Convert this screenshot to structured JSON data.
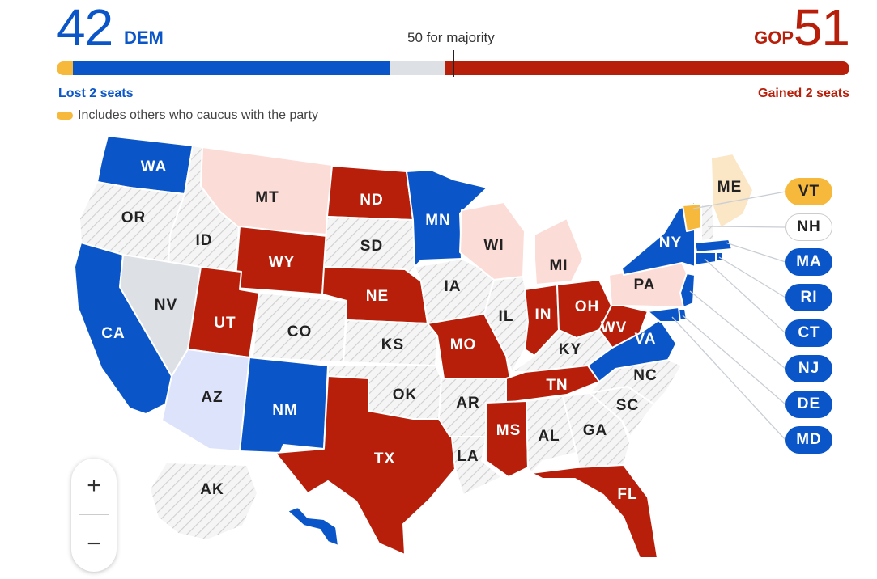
{
  "header": {
    "dem_count": "42",
    "dem_label": "DEM",
    "gop_count": "51",
    "gop_label": "GOP",
    "majority_label": "50 for majority",
    "dem_change": "Lost 2 seats",
    "gop_change": "Gained 2 seats",
    "note": "Includes others who caucus with the party"
  },
  "seat_bar": {
    "total_seats": 100,
    "majority": 50,
    "independent_dem": 2,
    "dem": 40,
    "undecided": 7,
    "gop": 51
  },
  "colors": {
    "dem_solid": "#0a56c9",
    "gop_solid": "#b81f0a",
    "gop_light": "#fcdcd7",
    "dem_light": "#dde3fb",
    "independent": "#f6b93b",
    "independent_light": "#fbe6c6",
    "no_race": "#f4f4f4",
    "undecided": "#dde1e6"
  },
  "states": [
    {
      "abbr": "WA",
      "status": "dem"
    },
    {
      "abbr": "OR",
      "status": "none"
    },
    {
      "abbr": "CA",
      "status": "dem"
    },
    {
      "abbr": "ID",
      "status": "none"
    },
    {
      "abbr": "NV",
      "status": "undecided"
    },
    {
      "abbr": "MT",
      "status": "gop_lean"
    },
    {
      "abbr": "WY",
      "status": "gop"
    },
    {
      "abbr": "UT",
      "status": "gop"
    },
    {
      "abbr": "AZ",
      "status": "dem_lean"
    },
    {
      "abbr": "CO",
      "status": "none"
    },
    {
      "abbr": "NM",
      "status": "dem"
    },
    {
      "abbr": "ND",
      "status": "gop"
    },
    {
      "abbr": "SD",
      "status": "none"
    },
    {
      "abbr": "NE",
      "status": "gop"
    },
    {
      "abbr": "KS",
      "status": "none"
    },
    {
      "abbr": "OK",
      "status": "none"
    },
    {
      "abbr": "TX",
      "status": "gop"
    },
    {
      "abbr": "MN",
      "status": "dem"
    },
    {
      "abbr": "IA",
      "status": "none"
    },
    {
      "abbr": "MO",
      "status": "gop"
    },
    {
      "abbr": "AR",
      "status": "none"
    },
    {
      "abbr": "LA",
      "status": "none"
    },
    {
      "abbr": "WI",
      "status": "gop_lean"
    },
    {
      "abbr": "IL",
      "status": "none"
    },
    {
      "abbr": "MI",
      "status": "gop_lean"
    },
    {
      "abbr": "IN",
      "status": "gop"
    },
    {
      "abbr": "OH",
      "status": "gop"
    },
    {
      "abbr": "KY",
      "status": "none"
    },
    {
      "abbr": "TN",
      "status": "gop"
    },
    {
      "abbr": "MS",
      "status": "gop"
    },
    {
      "abbr": "AL",
      "status": "none"
    },
    {
      "abbr": "GA",
      "status": "none"
    },
    {
      "abbr": "FL",
      "status": "gop"
    },
    {
      "abbr": "SC",
      "status": "none"
    },
    {
      "abbr": "NC",
      "status": "none"
    },
    {
      "abbr": "VA",
      "status": "dem"
    },
    {
      "abbr": "WV",
      "status": "gop"
    },
    {
      "abbr": "PA",
      "status": "gop_lean"
    },
    {
      "abbr": "NY",
      "status": "dem"
    },
    {
      "abbr": "ME",
      "status": "ind_lean"
    },
    {
      "abbr": "AK",
      "status": "none"
    },
    {
      "abbr": "HI",
      "status": "dem"
    }
  ],
  "callouts": [
    {
      "abbr": "VT",
      "status": "ind"
    },
    {
      "abbr": "NH",
      "status": "none"
    },
    {
      "abbr": "MA",
      "status": "dem"
    },
    {
      "abbr": "RI",
      "status": "dem"
    },
    {
      "abbr": "CT",
      "status": "dem"
    },
    {
      "abbr": "NJ",
      "status": "dem"
    },
    {
      "abbr": "DE",
      "status": "dem"
    },
    {
      "abbr": "MD",
      "status": "dem"
    }
  ],
  "zoom": {
    "in_label": "+",
    "out_label": "−"
  }
}
